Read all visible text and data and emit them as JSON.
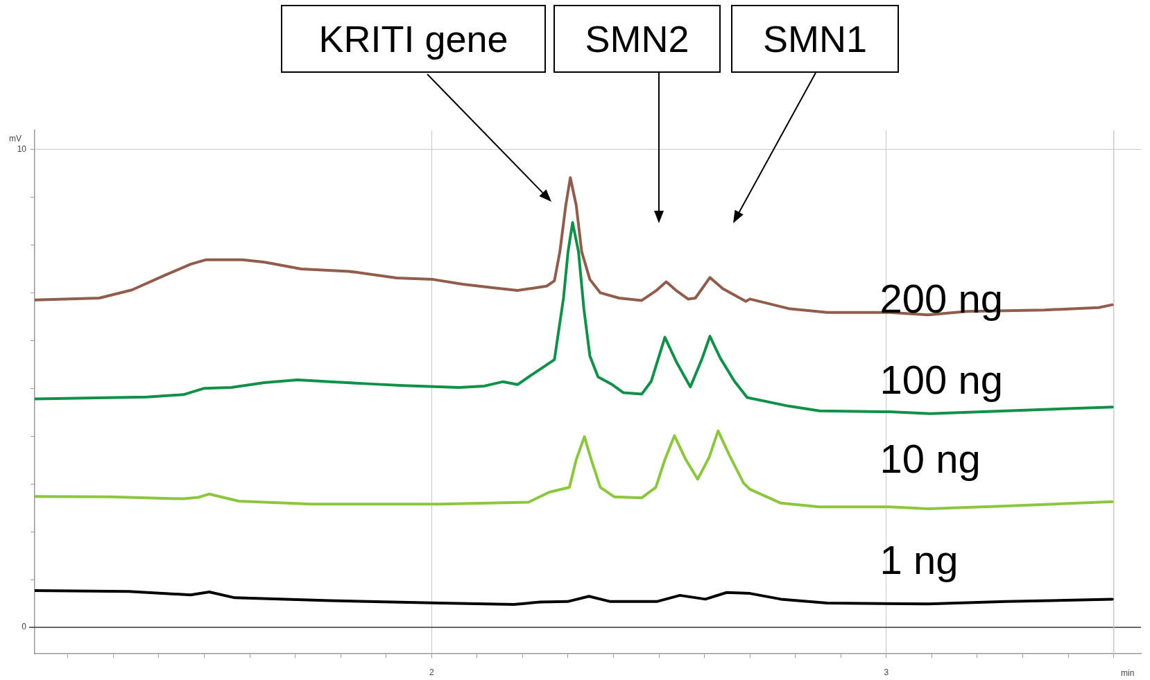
{
  "chart_data": {
    "type": "line",
    "xlabel": "min",
    "ylabel": "mV",
    "xlim": [
      1.127,
      3.56
    ],
    "ylim": [
      -0.55,
      10.4
    ],
    "xticks": [
      {
        "value": 1.2,
        "label": null
      },
      {
        "value": 1.3,
        "label": null
      },
      {
        "value": 1.4,
        "label": null
      },
      {
        "value": 1.5,
        "label": null
      },
      {
        "value": 1.6,
        "label": null
      },
      {
        "value": 1.7,
        "label": null
      },
      {
        "value": 1.8,
        "label": null
      },
      {
        "value": 1.9,
        "label": null
      },
      2,
      {
        "value": 2.1,
        "label": null
      },
      {
        "value": 2.2,
        "label": null
      },
      {
        "value": 2.3,
        "label": null
      },
      {
        "value": 2.4,
        "label": null
      },
      {
        "value": 2.5,
        "label": null
      },
      {
        "value": 2.6,
        "label": null
      },
      {
        "value": 2.7,
        "label": null
      },
      {
        "value": 2.8,
        "label": null
      },
      {
        "value": 2.9,
        "label": null
      },
      3,
      {
        "value": 3.1,
        "label": null
      },
      {
        "value": 3.2,
        "label": null
      },
      {
        "value": 3.3,
        "label": null
      },
      {
        "value": 3.4,
        "label": null
      },
      {
        "value": 3.5,
        "label": null
      }
    ],
    "yticks": [
      0,
      {
        "value": 1,
        "label": null
      },
      {
        "value": 2,
        "label": null
      },
      {
        "value": 3,
        "label": null
      },
      {
        "value": 4,
        "label": null
      },
      {
        "value": 5,
        "label": null
      },
      {
        "value": 6,
        "label": null
      },
      {
        "value": 7,
        "label": null
      },
      {
        "value": 8,
        "label": null
      },
      {
        "value": 9,
        "label": null
      },
      10
    ],
    "grid": true,
    "legend": false,
    "marker": "none",
    "line_style": "solid",
    "ref_lines": [
      {
        "axis": "y",
        "value": 0,
        "color": "#404040"
      },
      {
        "axis": "x",
        "value": 3.5,
        "color": "#c8c8c8"
      }
    ],
    "annotations": [
      "KRITI gene",
      "SMN2",
      "SMN1"
    ],
    "series": [
      {
        "name": "200 ng",
        "color": "#925c4c",
        "x": [
          1.128,
          1.269,
          1.341,
          1.414,
          1.47,
          1.503,
          1.584,
          1.633,
          1.713,
          1.818,
          1.923,
          2.003,
          2.068,
          2.14,
          2.189,
          2.253,
          2.27,
          2.282,
          2.295,
          2.305,
          2.318,
          2.33,
          2.348,
          2.371,
          2.412,
          2.462,
          2.493,
          2.516,
          2.539,
          2.564,
          2.58,
          2.612,
          2.64,
          2.691,
          2.7,
          2.785,
          2.87,
          3.007,
          3.092,
          3.177,
          3.348,
          3.467,
          3.497
        ],
        "values": [
          6.85,
          6.89,
          7.06,
          7.37,
          7.6,
          7.69,
          7.69,
          7.64,
          7.5,
          7.45,
          7.31,
          7.28,
          7.18,
          7.1,
          7.05,
          7.14,
          7.25,
          7.86,
          8.83,
          9.41,
          8.83,
          7.86,
          7.28,
          7.0,
          6.89,
          6.84,
          7.04,
          7.23,
          7.04,
          6.87,
          6.89,
          7.32,
          7.09,
          6.82,
          6.87,
          6.67,
          6.59,
          6.59,
          6.54,
          6.61,
          6.64,
          6.69,
          6.75
        ]
      },
      {
        "name": "100 ng",
        "color": "#109048",
        "x": [
          1.128,
          1.374,
          1.454,
          1.499,
          1.559,
          1.632,
          1.705,
          1.777,
          1.874,
          1.939,
          2.06,
          2.116,
          2.157,
          2.189,
          2.221,
          2.27,
          2.29,
          2.3,
          2.31,
          2.323,
          2.335,
          2.348,
          2.366,
          2.397,
          2.422,
          2.462,
          2.483,
          2.513,
          2.539,
          2.569,
          2.595,
          2.612,
          2.635,
          2.666,
          2.694,
          2.785,
          2.853,
          3.007,
          3.096,
          3.263,
          3.497
        ],
        "values": [
          4.78,
          4.82,
          4.87,
          5.0,
          5.02,
          5.12,
          5.18,
          5.14,
          5.09,
          5.06,
          5.02,
          5.05,
          5.14,
          5.08,
          5.29,
          5.6,
          6.89,
          7.86,
          8.47,
          7.86,
          6.65,
          5.68,
          5.24,
          5.08,
          4.91,
          4.88,
          5.15,
          6.07,
          5.54,
          5.03,
          5.63,
          6.09,
          5.63,
          5.15,
          4.81,
          4.63,
          4.53,
          4.51,
          4.47,
          4.53,
          4.61
        ]
      },
      {
        "name": "10 ng",
        "color": "#8cc63f",
        "x": [
          1.128,
          1.293,
          1.454,
          1.487,
          1.511,
          1.576,
          1.737,
          2.019,
          2.213,
          2.259,
          2.303,
          2.318,
          2.336,
          2.351,
          2.371,
          2.402,
          2.462,
          2.493,
          2.513,
          2.534,
          2.559,
          2.585,
          2.61,
          2.63,
          2.655,
          2.686,
          2.7,
          2.768,
          2.853,
          3.007,
          3.092,
          3.263,
          3.497
        ],
        "values": [
          2.74,
          2.73,
          2.69,
          2.72,
          2.79,
          2.64,
          2.58,
          2.58,
          2.62,
          2.83,
          2.93,
          3.51,
          3.99,
          3.51,
          2.93,
          2.73,
          2.71,
          2.93,
          3.51,
          4.01,
          3.51,
          3.1,
          3.55,
          4.11,
          3.6,
          3.02,
          2.89,
          2.6,
          2.52,
          2.52,
          2.48,
          2.54,
          2.63
        ]
      },
      {
        "name": "1 ng",
        "color": "#000000",
        "x": [
          1.128,
          1.334,
          1.47,
          1.511,
          1.567,
          1.777,
          2.019,
          2.181,
          2.239,
          2.299,
          2.346,
          2.393,
          2.495,
          2.546,
          2.602,
          2.649,
          2.7,
          2.768,
          2.87,
          3.092,
          3.263,
          3.497
        ],
        "values": [
          0.77,
          0.75,
          0.68,
          0.74,
          0.62,
          0.56,
          0.51,
          0.48,
          0.53,
          0.54,
          0.65,
          0.54,
          0.54,
          0.67,
          0.59,
          0.73,
          0.71,
          0.59,
          0.51,
          0.49,
          0.54,
          0.59
        ]
      }
    ]
  }
}
